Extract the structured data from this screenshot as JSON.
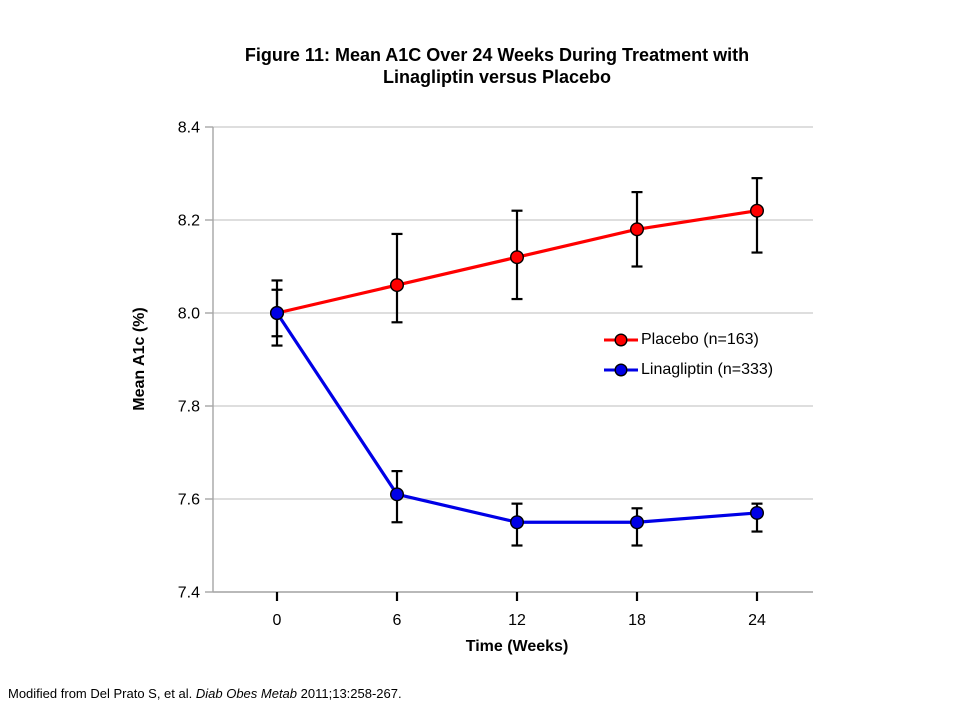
{
  "slide": {
    "title": "Figure 11: Mean A1C Over 24 Weeks During Treatment with Linagliptin versus Placebo",
    "title_lines": [
      "Figure 11: Mean A1C Over 24 Weeks During Treatment with",
      "Linagliptin versus Placebo"
    ],
    "citation": {
      "prefix": "Modified from Del Prato S, et al. ",
      "journal": "Diab Obes Metab",
      "suffix": " 2011;13:258-267."
    }
  },
  "chart_data": {
    "type": "line",
    "title": "Figure 11: Mean A1C Over 24 Weeks During Treatment with Linagliptin versus Placebo",
    "xlabel": "Time (Weeks)",
    "ylabel": "Mean A1c (%)",
    "x": [
      0,
      6,
      12,
      18,
      24
    ],
    "xtick_labels": [
      "0",
      "6",
      "12",
      "18",
      "24"
    ],
    "ytick_values": [
      8.4,
      8.2,
      8.0,
      7.8,
      7.6,
      7.4
    ],
    "ytick_labels": [
      "8.4",
      "8.2",
      "8.0",
      "7.8",
      "7.6",
      "7.4"
    ],
    "ylim": [
      7.4,
      8.4
    ],
    "xlim": [
      0,
      24
    ],
    "grid": "horizontal",
    "legend_position": "middle-right",
    "marker": "circle",
    "error_bars": true,
    "series": [
      {
        "name": "Placebo (n=163)",
        "color": "#FF0000",
        "values": [
          8.0,
          8.06,
          8.12,
          8.18,
          8.22
        ],
        "error_low": [
          7.93,
          7.98,
          8.03,
          8.1,
          8.13
        ],
        "error_high": [
          8.07,
          8.17,
          8.22,
          8.26,
          8.29
        ]
      },
      {
        "name": "Linagliptin (n=333)",
        "color": "#0000E6",
        "values": [
          8.0,
          7.61,
          7.55,
          7.55,
          7.57
        ],
        "error_low": [
          7.95,
          7.55,
          7.5,
          7.5,
          7.53
        ],
        "error_high": [
          8.05,
          7.66,
          7.59,
          7.58,
          7.59
        ]
      }
    ],
    "style": {
      "background": "#FFFFFF",
      "grid_color": "#C9C9C9",
      "axis_color": "#A6A6A6",
      "tick_color": "#000000",
      "error_bar_color": "#000000",
      "marker_edge_color": "#000000",
      "text_color": "#000000"
    }
  }
}
